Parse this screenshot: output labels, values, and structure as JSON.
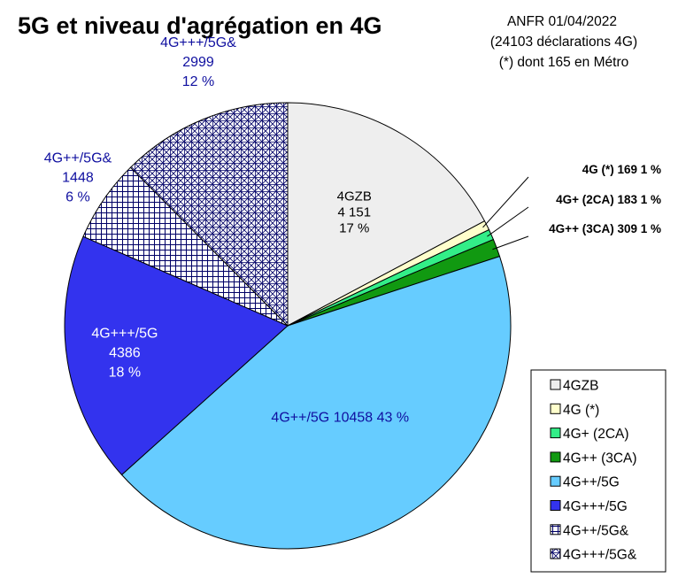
{
  "chart_data": {
    "type": "pie",
    "title": "5G et niveau d'agrégation en 4G",
    "source_lines": [
      "ANFR 01/04/2022",
      "(24103 déclarations 4G)",
      "(*) dont 165 en Métro"
    ],
    "slices": [
      {
        "name": "4GZB",
        "value": 4151,
        "value_label": "4 151",
        "pct_label": "17 %",
        "color": "#eeeeee",
        "pattern": "none"
      },
      {
        "name": "4G (*)",
        "value": 169,
        "value_label": "169",
        "pct_label": "1 %",
        "color": "#ffffcc",
        "pattern": "none"
      },
      {
        "name": "4G+ (2CA)",
        "value": 183,
        "value_label": "183",
        "pct_label": "1 %",
        "color": "#33ee88",
        "pattern": "none"
      },
      {
        "name": "4G++ (3CA)",
        "value": 309,
        "value_label": "309",
        "pct_label": "1 %",
        "color": "#119911",
        "pattern": "none"
      },
      {
        "name": "4G++/5G",
        "value": 10458,
        "value_label": "10458",
        "pct_label": "43 %",
        "color": "#66ccff",
        "pattern": "none"
      },
      {
        "name": "4G+++/5G",
        "value": 4386,
        "value_label": "4386",
        "pct_label": "18 %",
        "color": "#3333ee",
        "pattern": "none"
      },
      {
        "name": "4G++/5G&",
        "value": 1448,
        "value_label": "1448",
        "pct_label": "6 %",
        "color": "#ffffff",
        "pattern": "grid"
      },
      {
        "name": "4G+++/5G&",
        "value": 2999,
        "value_label": "2999",
        "pct_label": "12 %",
        "color": "#ffffff",
        "pattern": "crosshatch"
      }
    ],
    "legend": [
      "4GZB",
      "4G (*)",
      "4G+ (2CA)",
      "4G++ (3CA)",
      "4G++/5G",
      "4G+++/5G",
      "4G++/5G&",
      "4G+++/5G&"
    ],
    "legend_placement": "bottom-right",
    "start_angle_deg": 0,
    "direction": "clockwise"
  }
}
